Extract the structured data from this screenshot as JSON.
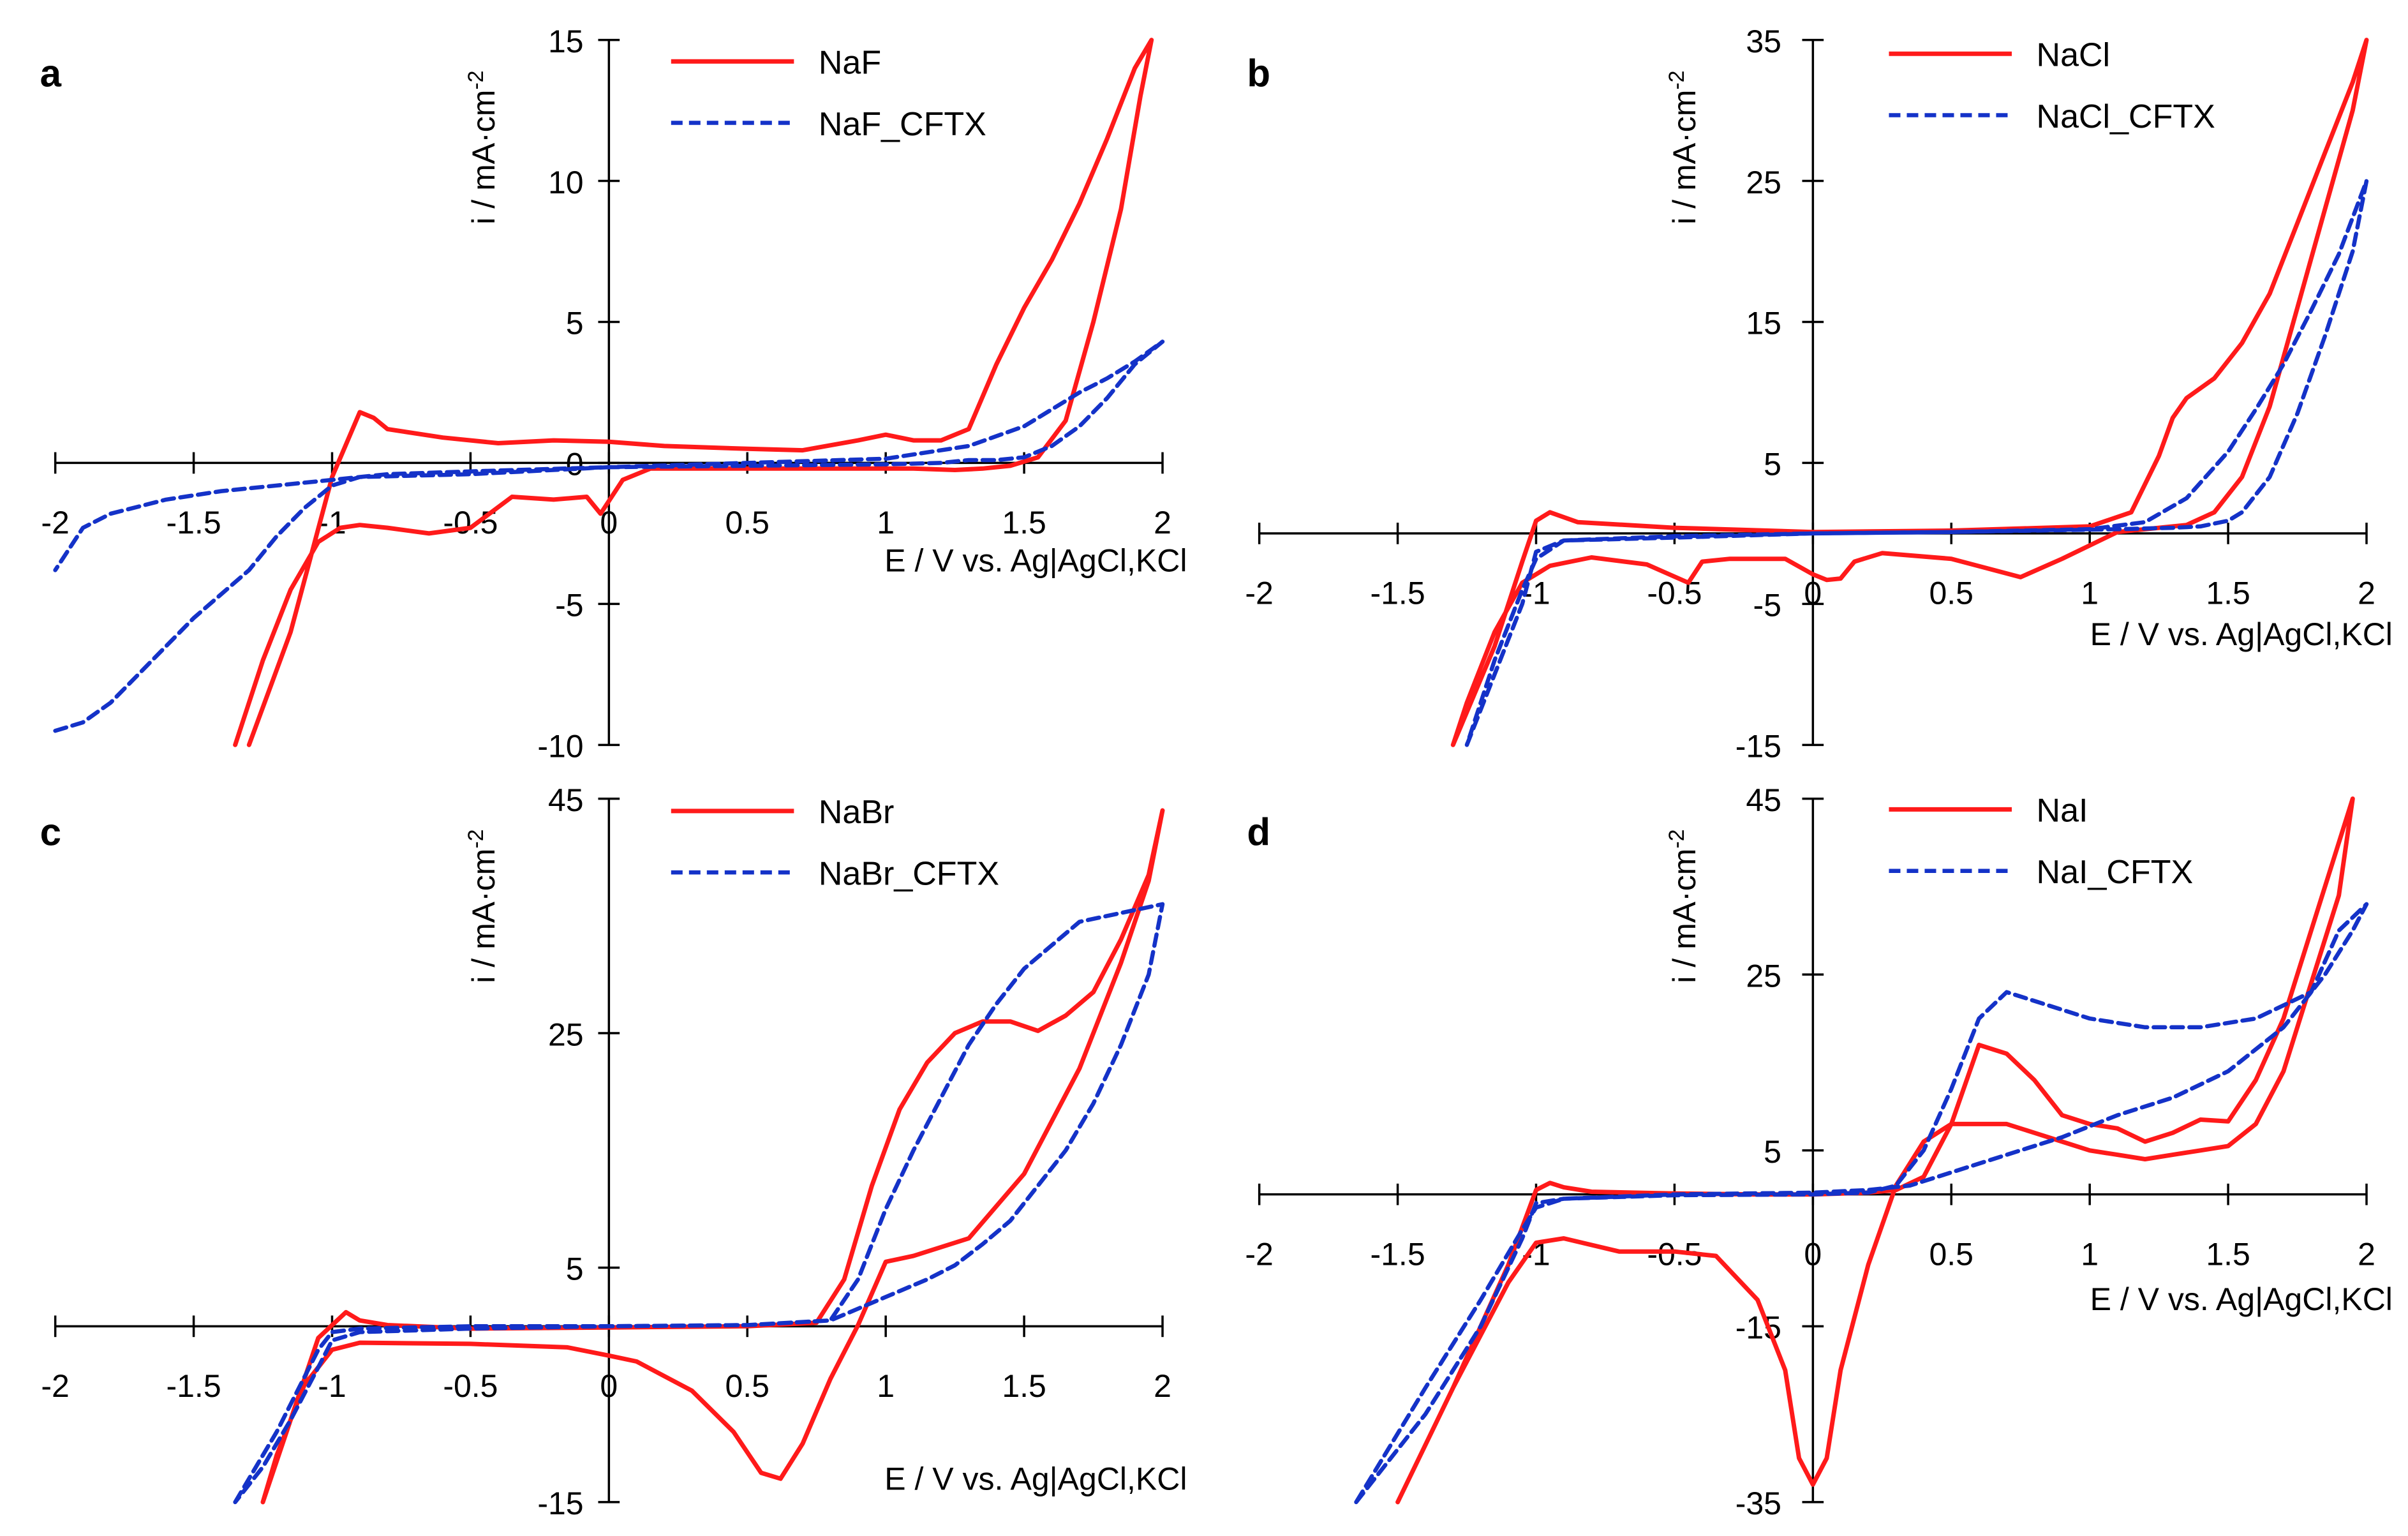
{
  "colors": {
    "red": "#ff1a1a",
    "blue": "#1432c8"
  },
  "chart_data": [
    {
      "panel": "a",
      "type": "line",
      "xlabel": "E / V vs. Ag|AgCl,KCl",
      "ylabel": "i / mA·cm-2",
      "xlim": [
        -2,
        2
      ],
      "ylim": [
        -10,
        15
      ],
      "xticks": [
        "-2",
        "-1.5",
        "-1",
        "-0.5",
        "0",
        "0.5",
        "1",
        "1.5",
        "2"
      ],
      "yticks": [
        "-10",
        "-5",
        "0",
        "5",
        "10",
        "15"
      ],
      "series": [
        {
          "name": "NaF",
          "style": "solid",
          "color": "red",
          "x": [
            -1.3,
            -1.15,
            -1.0,
            -0.9,
            -0.85,
            -0.8,
            -0.6,
            -0.4,
            -0.2,
            0,
            0.2,
            0.5,
            0.7,
            0.9,
            1.0,
            1.1,
            1.2,
            1.3,
            1.4,
            1.5,
            1.6,
            1.7,
            1.8,
            1.9,
            1.96,
            1.92,
            1.85,
            1.75,
            1.65,
            1.55,
            1.45,
            1.35,
            1.25,
            1.1,
            0.9,
            0.7,
            0.5,
            0.3,
            0.15,
            0.05,
            -0.03,
            -0.08,
            -0.2,
            -0.35,
            -0.5,
            -0.65,
            -0.8,
            -0.9,
            -0.97,
            -1.05,
            -1.15,
            -1.25,
            -1.35
          ],
          "y": [
            -10,
            -6,
            -0.5,
            1.8,
            1.6,
            1.2,
            0.9,
            0.7,
            0.8,
            0.75,
            0.6,
            0.5,
            0.45,
            0.8,
            1.0,
            0.8,
            0.8,
            1.2,
            3.5,
            5.5,
            7.2,
            9.2,
            11.5,
            14,
            15,
            13,
            9,
            5,
            1.5,
            0.2,
            -0.1,
            -0.2,
            -0.25,
            -0.2,
            -0.2,
            -0.2,
            -0.2,
            -0.2,
            -0.2,
            -0.6,
            -1.8,
            -1.2,
            -1.3,
            -1.2,
            -2.3,
            -2.5,
            -2.3,
            -2.2,
            -2.3,
            -2.8,
            -4.5,
            -7,
            -10
          ]
        },
        {
          "name": "NaF_CFTX",
          "style": "dashed",
          "color": "blue",
          "x": [
            -2,
            -1.9,
            -1.8,
            -1.7,
            -1.5,
            -1.3,
            -1.2,
            -1.1,
            -1.0,
            -0.9,
            -0.5,
            0,
            0.5,
            1.0,
            1.3,
            1.5,
            1.6,
            1.7,
            1.8,
            1.9,
            2.0,
            1.9,
            1.8,
            1.7,
            1.6,
            1.5,
            1.4,
            1.3,
            1.2,
            1.0,
            0.5,
            0,
            -0.5,
            -0.8,
            -0.9,
            -1.0,
            -1.2,
            -1.4,
            -1.6,
            -1.8,
            -1.9,
            -2.0
          ],
          "y": [
            -9.5,
            -9.2,
            -8.5,
            -7.5,
            -5.5,
            -3.8,
            -2.6,
            -1.6,
            -0.8,
            -0.5,
            -0.4,
            -0.15,
            0,
            0.15,
            0.6,
            1.3,
            1.9,
            2.5,
            3.0,
            3.6,
            4.3,
            3.5,
            2.3,
            1.3,
            0.6,
            0.2,
            0.1,
            0.1,
            0.0,
            -0.05,
            -0.1,
            -0.15,
            -0.3,
            -0.4,
            -0.5,
            -0.6,
            -0.8,
            -1.0,
            -1.3,
            -1.8,
            -2.3,
            -3.8
          ]
        }
      ]
    },
    {
      "panel": "b",
      "type": "line",
      "xlabel": "E / V vs. Ag|AgCl,KCl",
      "ylabel": "i / mA·cm-2",
      "xlim": [
        -2,
        2
      ],
      "ylim": [
        -15,
        35
      ],
      "xticks": [
        "-2",
        "-1.5",
        "-1",
        "-0.5",
        "0",
        "0.5",
        "1",
        "1.5",
        "2"
      ],
      "yticks": [
        "-15",
        "-5",
        "5",
        "15",
        "25",
        "35"
      ],
      "series": [
        {
          "name": "NaCl",
          "style": "solid",
          "color": "red",
          "x": [
            -1.3,
            -1.15,
            -1.05,
            -1.0,
            -0.95,
            -0.85,
            -0.5,
            0,
            0.5,
            1.0,
            1.15,
            1.25,
            1.3,
            1.35,
            1.45,
            1.55,
            1.65,
            1.75,
            1.85,
            1.95,
            2.0,
            1.95,
            1.85,
            1.75,
            1.65,
            1.55,
            1.45,
            1.35,
            1.25,
            1.1,
            0.9,
            0.75,
            0.5,
            0.25,
            0.15,
            0.1,
            0.05,
            0,
            -0.1,
            -0.3,
            -0.4,
            -0.45,
            -0.6,
            -0.8,
            -0.95,
            -1.05,
            -1.15,
            -1.25,
            -1.3
          ],
          "y": [
            -15,
            -8,
            -2,
            0.9,
            1.5,
            0.8,
            0.4,
            0.1,
            0.2,
            0.5,
            1.5,
            5.5,
            8.2,
            9.6,
            11,
            13.5,
            17,
            22,
            27,
            32,
            35,
            30,
            23,
            16,
            9,
            4,
            1.5,
            0.6,
            0.4,
            0.1,
            -1.8,
            -3.1,
            -1.8,
            -1.4,
            -2.0,
            -3.2,
            -3.3,
            -2.9,
            -1.8,
            -1.8,
            -2.0,
            -3.5,
            -2.2,
            -1.7,
            -2.3,
            -3.5,
            -7,
            -12,
            -15
          ]
        },
        {
          "name": "NaCl_CFTX",
          "style": "dashed",
          "color": "blue",
          "x": [
            -1.25,
            -1.15,
            -1.05,
            -1.0,
            -0.9,
            -0.5,
            0,
            0.5,
            1.0,
            1.2,
            1.35,
            1.5,
            1.6,
            1.7,
            1.8,
            1.9,
            2.0,
            1.95,
            1.85,
            1.75,
            1.65,
            1.55,
            1.5,
            1.4,
            1.3,
            1.1,
            0.5,
            0,
            -0.5,
            -0.9,
            -1.0,
            -1.05,
            -1.15,
            -1.25
          ],
          "y": [
            -15,
            -10,
            -5,
            -1.3,
            -0.5,
            -0.2,
            0,
            0.1,
            0.3,
            0.8,
            2.5,
            5.8,
            8.8,
            12,
            15.8,
            19.8,
            25,
            20,
            14,
            8.5,
            4,
            1.5,
            0.9,
            0.5,
            0.4,
            0.3,
            0.1,
            0,
            -0.3,
            -0.5,
            -1.8,
            -4,
            -9,
            -15
          ]
        }
      ]
    },
    {
      "panel": "c",
      "type": "line",
      "xlabel": "E / V vs. Ag|AgCl,KCl",
      "ylabel": "i / mA·cm-2",
      "xlim": [
        -2,
        2
      ],
      "ylim": [
        -15,
        45
      ],
      "xticks": [
        "-2",
        "-1.5",
        "-1",
        "-0.5",
        "0",
        "0.5",
        "1",
        "1.5",
        "2"
      ],
      "yticks": [
        "-15",
        "5",
        "25",
        "45"
      ],
      "series": [
        {
          "name": "NaBr",
          "style": "solid",
          "color": "red",
          "x": [
            -1.25,
            -1.15,
            -1.05,
            -0.95,
            -0.9,
            -0.8,
            -0.5,
            0,
            0.5,
            0.75,
            0.85,
            0.95,
            1.05,
            1.15,
            1.25,
            1.35,
            1.45,
            1.55,
            1.65,
            1.75,
            1.85,
            1.95,
            2.0,
            1.95,
            1.85,
            1.7,
            1.5,
            1.3,
            1.1,
            1.0,
            0.9,
            0.8,
            0.7,
            0.62,
            0.55,
            0.45,
            0.3,
            0.1,
            0,
            -0.15,
            -0.5,
            -0.9,
            -1.0,
            -1.1,
            -1.2,
            -1.25
          ],
          "y": [
            -15,
            -8,
            -1,
            1.2,
            0.5,
            0.1,
            -0.2,
            -0.1,
            0,
            0.3,
            4,
            12,
            18.5,
            22.5,
            25,
            26,
            26,
            25.2,
            26.5,
            28.5,
            33,
            38.5,
            44,
            38,
            31,
            22,
            13,
            7.5,
            6,
            5.5,
            0.1,
            -4.5,
            -10,
            -13,
            -12.5,
            -9,
            -5.5,
            -3,
            -2.5,
            -1.8,
            -1.5,
            -1.4,
            -2,
            -5,
            -11,
            -15
          ]
        },
        {
          "name": "NaBr_CFTX",
          "style": "dashed",
          "color": "blue",
          "x": [
            -1.35,
            -1.2,
            -1.05,
            -1.0,
            -0.9,
            -0.5,
            0,
            0.5,
            0.8,
            0.9,
            1.0,
            1.1,
            1.2,
            1.3,
            1.4,
            1.5,
            1.6,
            1.7,
            1.8,
            1.9,
            2.0,
            1.95,
            1.85,
            1.75,
            1.65,
            1.55,
            1.45,
            1.35,
            1.25,
            1.15,
            1.05,
            0.95,
            0.85,
            0.8,
            0.5,
            0,
            -0.5,
            -0.9,
            -1.0,
            -1.05,
            -1.15,
            -1.25,
            -1.35
          ],
          "y": [
            -15,
            -9,
            -2,
            -0.5,
            -0.2,
            0,
            0,
            0.1,
            0.5,
            4,
            10,
            15,
            19.5,
            24,
            27.5,
            30.5,
            32.5,
            34.5,
            35,
            35.5,
            36,
            30,
            24,
            19,
            15,
            12,
            9,
            7,
            5.2,
            4,
            3,
            2,
            1,
            0.5,
            0.1,
            0,
            -0.2,
            -0.5,
            -1.2,
            -3.5,
            -8,
            -12,
            -15
          ]
        }
      ]
    },
    {
      "panel": "d",
      "type": "line",
      "xlabel": "E / V vs. Ag|AgCl,KCl",
      "ylabel": "i / mA·cm-2",
      "xlim": [
        -2,
        2
      ],
      "ylim": [
        -35,
        45
      ],
      "xticks": [
        "-2",
        "-1.5",
        "-1",
        "-0.5",
        "0",
        "0.5",
        "1",
        "1.5",
        "2"
      ],
      "yticks": [
        "-35",
        "-15",
        "5",
        "25",
        "45"
      ],
      "series": [
        {
          "name": "NaI",
          "style": "solid",
          "color": "red",
          "x": [
            -1.5,
            -1.3,
            -1.1,
            -1.0,
            -0.95,
            -0.9,
            -0.8,
            -0.5,
            -0.2,
            0,
            0.2,
            0.3,
            0.4,
            0.5,
            0.6,
            0.7,
            0.8,
            0.9,
            1.0,
            1.1,
            1.2,
            1.3,
            1.4,
            1.5,
            1.6,
            1.7,
            1.8,
            1.9,
            1.95,
            1.9,
            1.8,
            1.7,
            1.6,
            1.5,
            1.4,
            1.3,
            1.2,
            1.1,
            1.0,
            0.9,
            0.8,
            0.7,
            0.5,
            0.4,
            0.3,
            0.2,
            0.1,
            0.05,
            0,
            -0.05,
            -0.1,
            -0.2,
            -0.35,
            -0.5,
            -0.7,
            -0.9,
            -1.0,
            -1.1,
            -1.3,
            -1.5
          ],
          "y": [
            -35,
            -22,
            -8,
            0.5,
            1.3,
            0.8,
            0.3,
            0.1,
            0,
            0,
            0.2,
            0.5,
            2,
            8,
            17,
            16,
            13,
            9,
            8,
            7.5,
            6,
            7,
            8.5,
            8.3,
            13,
            20,
            30,
            40,
            45,
            34,
            24,
            14,
            8,
            5.5,
            5,
            4.5,
            4,
            4.5,
            5,
            6,
            7,
            8,
            8,
            6,
            1,
            -8,
            -20,
            -30,
            -33,
            -30,
            -20,
            -12,
            -7,
            -6.5,
            -6.5,
            -5,
            -5.5,
            -10,
            -22,
            -35
          ]
        },
        {
          "name": "NaI_CFTX",
          "style": "dashed",
          "color": "blue",
          "x": [
            -1.65,
            -1.4,
            -1.2,
            -1.05,
            -1.0,
            -0.9,
            -0.5,
            0,
            0.2,
            0.3,
            0.4,
            0.5,
            0.6,
            0.7,
            0.8,
            0.9,
            1.0,
            1.2,
            1.4,
            1.6,
            1.8,
            1.9,
            2.0,
            1.95,
            1.85,
            1.7,
            1.5,
            1.3,
            1.1,
            0.9,
            0.7,
            0.5,
            0.35,
            0.2,
            0,
            -0.5,
            -0.9,
            -1.0,
            -1.05,
            -1.2,
            -1.4,
            -1.65
          ],
          "y": [
            -35,
            -25,
            -15,
            -5,
            -1,
            -0.5,
            -0.1,
            0,
            0.2,
            1,
            5,
            12,
            20,
            23,
            22,
            21,
            20,
            19,
            19,
            20,
            23,
            30,
            33,
            30,
            25,
            19,
            14,
            11,
            9,
            6.5,
            4.5,
            2.5,
            1,
            0.5,
            0.2,
            0,
            -0.5,
            -1.5,
            -4,
            -12,
            -22,
            -35
          ]
        }
      ]
    }
  ]
}
